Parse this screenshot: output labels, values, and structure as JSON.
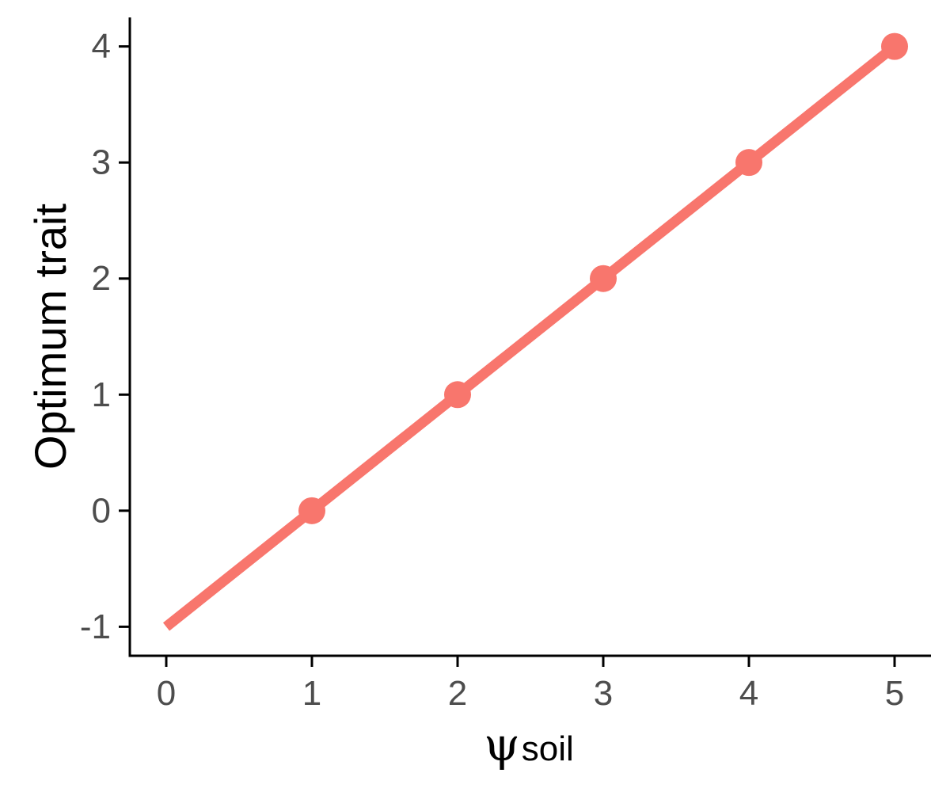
{
  "chart_data": {
    "type": "line",
    "title": "",
    "xlabel_symbol": "ψ",
    "xlabel_subscript": "soil",
    "ylabel": "Optimum trait",
    "xlim": [
      -0.25,
      5.25
    ],
    "ylim": [
      -1.25,
      4.25
    ],
    "x_ticks": [
      "0",
      "1",
      "2",
      "3",
      "4",
      "5"
    ],
    "y_ticks": [
      "-1",
      "0",
      "1",
      "2",
      "3",
      "4"
    ],
    "grid": false,
    "legend": "none",
    "line": {
      "x": [
        0,
        5
      ],
      "y": [
        -1,
        4
      ]
    },
    "points": {
      "x": [
        1,
        2,
        3,
        4,
        5
      ],
      "y": [
        0,
        1,
        2,
        3,
        4
      ]
    },
    "series_color": "#F8766D"
  }
}
